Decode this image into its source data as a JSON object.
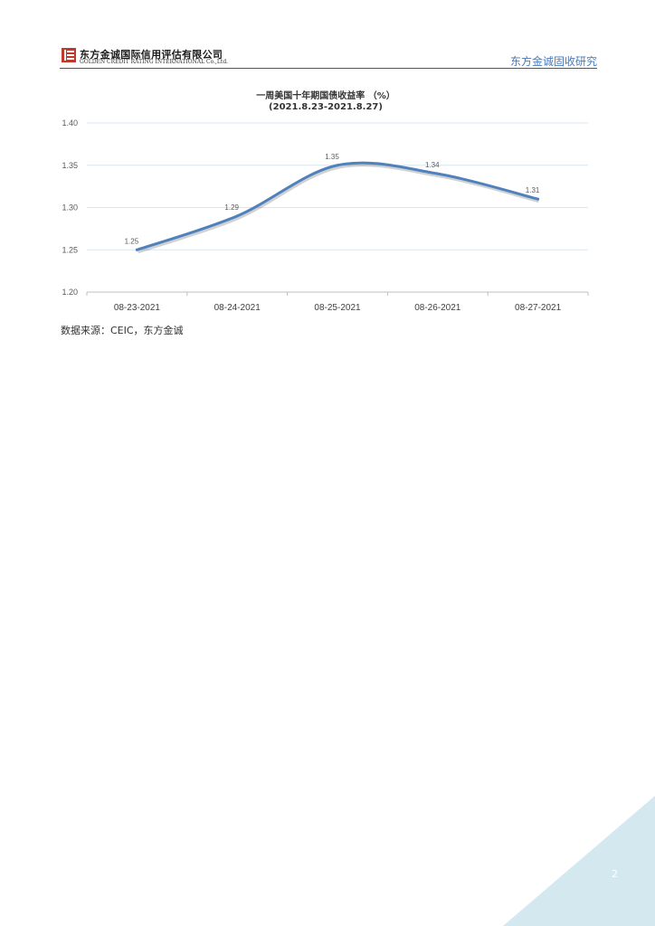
{
  "header": {
    "company_cn": "东方金诚国际信用评估有限公司",
    "company_en": "GOLDEN CREDIT RATING INTERNATIONAL Co.,Ltd.",
    "section": "东方金诚固收研究"
  },
  "colors": {
    "line": "#4f81bd",
    "grid": "#d9e6f2",
    "accent": "#4a7ab8",
    "logo": "#c0392b",
    "corner": "#d4e8f0"
  },
  "chart_data": {
    "type": "line",
    "title": "一周美国十年期国债收益率 （%）",
    "subtitle": "(2021.8.23-2021.8.27)",
    "categories": [
      "08-23-2021",
      "08-24-2021",
      "08-25-2021",
      "08-26-2021",
      "08-27-2021"
    ],
    "series": [
      {
        "values": [
          1.25,
          1.29,
          1.35,
          1.34,
          1.31
        ]
      }
    ],
    "data_labels": [
      "1.25",
      "1.29",
      "1.35",
      "1.34",
      "1.31"
    ],
    "yticks": [
      "1.20",
      "1.25",
      "1.30",
      "1.35",
      "1.40"
    ],
    "ylim": [
      1.2,
      1.4
    ],
    "grid": true,
    "smooth": true
  },
  "source": "数据来源：CEIC，东方金诚",
  "page_number": "2"
}
